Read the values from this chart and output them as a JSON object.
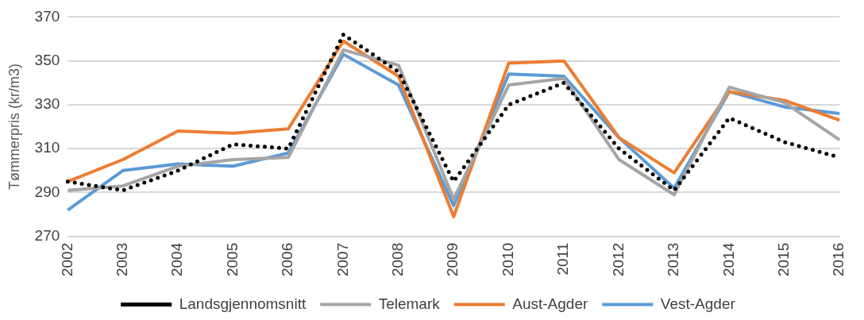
{
  "chart_data": {
    "type": "line",
    "ylabel": "Tømmerpris (kr/m3)",
    "categories": [
      "2002",
      "2003",
      "2004",
      "2005",
      "2006",
      "2007",
      "2008",
      "2009",
      "2010",
      "2011",
      "2012",
      "2013",
      "2014",
      "2015",
      "2016"
    ],
    "series": [
      {
        "name": "Landsgjennomsnitt",
        "color": "#000000",
        "line_style": "dotted",
        "values": [
          295,
          291,
          300,
          312,
          310,
          362,
          345,
          295,
          330,
          340,
          310,
          291,
          324,
          313,
          306
        ]
      },
      {
        "name": "Telemark",
        "color": "#a5a5a5",
        "values": [
          291,
          293,
          302,
          305,
          306,
          355,
          348,
          287,
          339,
          342,
          305,
          289,
          338,
          331,
          314
        ]
      },
      {
        "name": "Aust-Agder",
        "color": "#ed7d31",
        "values": [
          295,
          305,
          318,
          317,
          319,
          359,
          343,
          279,
          349,
          350,
          315,
          299,
          336,
          332,
          323
        ]
      },
      {
        "name": "Vest-Agder",
        "color": "#5b9bd5",
        "values": [
          282,
          300,
          303,
          302,
          308,
          353,
          339,
          284,
          344,
          343,
          315,
          292,
          336,
          329,
          326
        ]
      }
    ],
    "ylim": [
      270,
      370
    ],
    "yticks": [
      270,
      290,
      310,
      330,
      350,
      370
    ],
    "grid": "y",
    "legend": "bottom",
    "marker": "none",
    "line_style": "solid"
  }
}
